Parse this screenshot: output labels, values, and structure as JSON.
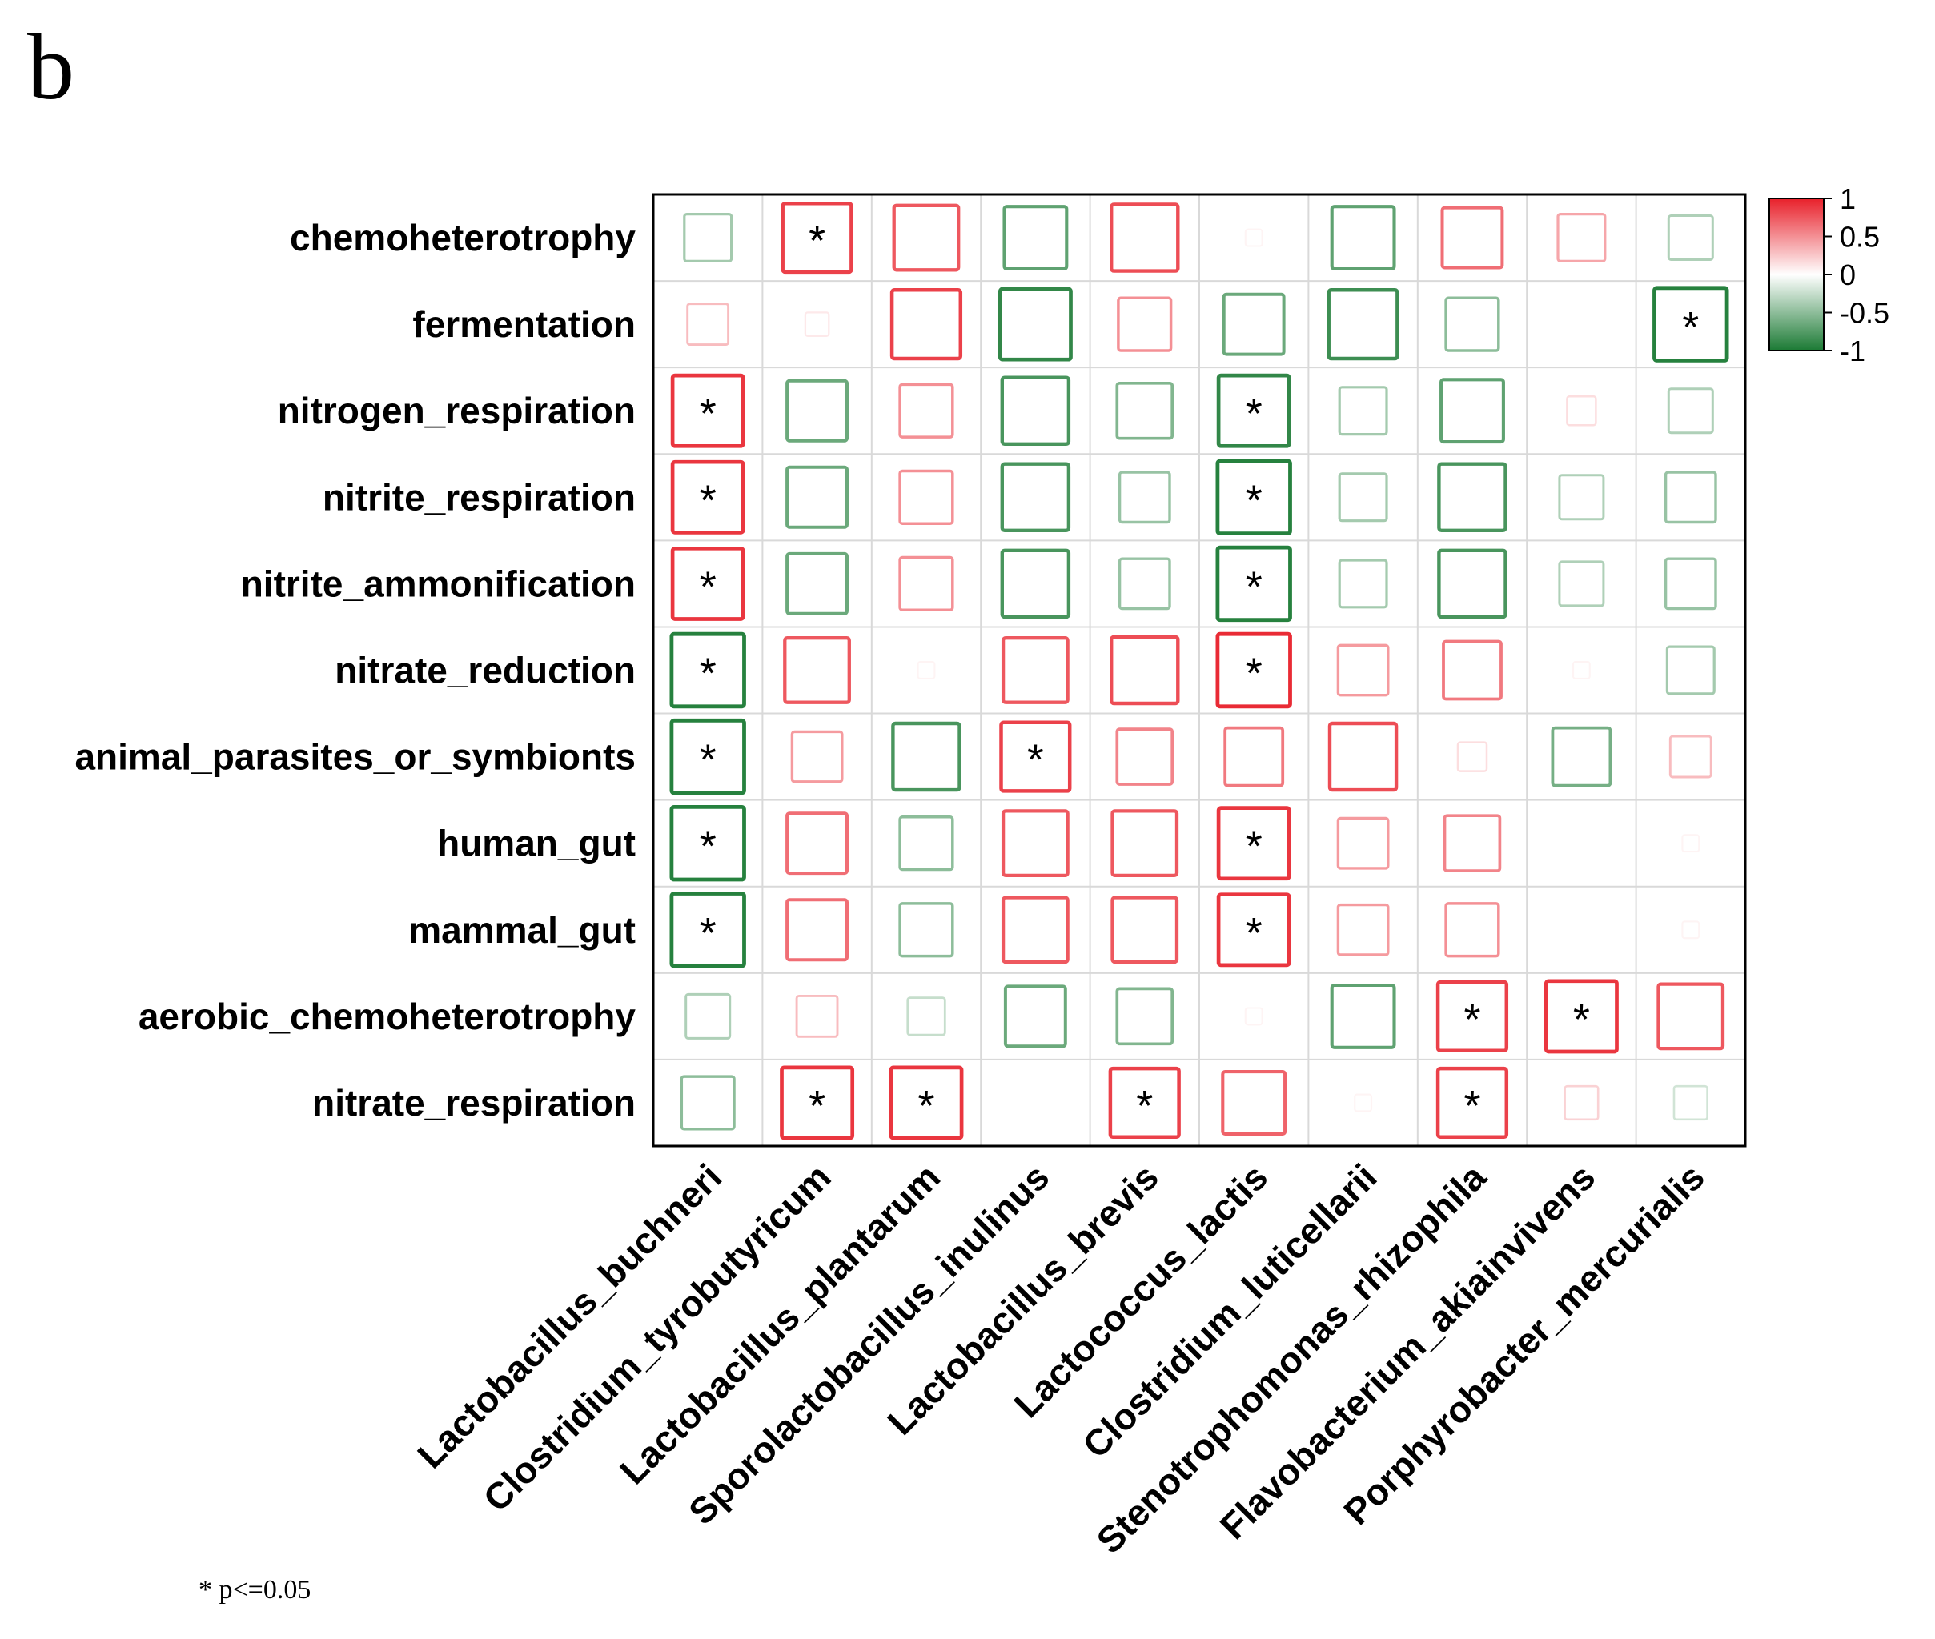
{
  "figure": {
    "panel_label": "b",
    "footnote": "* p<=0.05"
  },
  "colors": {
    "positive": "#e8202a",
    "negative": "#1b7a34",
    "mid": "#ffffff",
    "grid": "#d9d9d9",
    "frame": "#000000"
  },
  "chart_data": {
    "type": "heatmap",
    "title": "",
    "rows": [
      "chemoheterotrophy",
      "fermentation",
      "nitrogen_respiration",
      "nitrite_respiration",
      "nitrite_ammonification",
      "nitrate_reduction",
      "animal_parasites_or_symbionts",
      "human_gut",
      "mammal_gut",
      "aerobic_chemoheterotrophy",
      "nitrate_respiration"
    ],
    "columns": [
      "Lactobacillus_buchneri",
      "Clostridium_tyrobutyricum",
      "Lactobacillus_plantarum",
      "Sporolactobacillus_inulinus",
      "Lactobacillus_brevis",
      "Lactococcus_lactis",
      "Clostridium_luticellarii",
      "Stenotrophomonas_rhizophila",
      "Flavobacterium_akiainvivens",
      "Porphyrobacter_mercurialis"
    ],
    "values": [
      [
        -0.4,
        0.85,
        0.75,
        -0.7,
        0.8,
        0.05,
        -0.7,
        0.65,
        0.4,
        -0.35
      ],
      [
        0.3,
        0.1,
        0.85,
        -0.9,
        0.5,
        -0.65,
        -0.85,
        -0.5,
        0.0,
        -0.95
      ],
      [
        0.9,
        -0.65,
        0.5,
        -0.8,
        -0.55,
        -0.9,
        -0.4,
        -0.7,
        0.15,
        -0.35
      ],
      [
        0.9,
        -0.65,
        0.5,
        -0.8,
        -0.45,
        -0.95,
        -0.4,
        -0.8,
        -0.35,
        -0.45
      ],
      [
        0.9,
        -0.65,
        0.5,
        -0.8,
        -0.45,
        -0.95,
        -0.4,
        -0.8,
        -0.35,
        -0.45
      ],
      [
        -0.95,
        0.75,
        0.05,
        0.75,
        0.8,
        0.95,
        0.45,
        0.6,
        0.05,
        -0.4
      ],
      [
        -0.95,
        0.45,
        -0.8,
        0.85,
        0.55,
        0.6,
        0.8,
        0.15,
        -0.6,
        0.3
      ],
      [
        -0.95,
        0.65,
        -0.5,
        0.75,
        0.75,
        0.9,
        0.45,
        0.55,
        0.0,
        0.05
      ],
      [
        -0.95,
        0.65,
        -0.5,
        0.75,
        0.75,
        0.9,
        0.45,
        0.5,
        0.0,
        0.05
      ],
      [
        -0.35,
        0.3,
        -0.25,
        -0.65,
        -0.55,
        0.05,
        -0.7,
        0.85,
        0.9,
        0.75
      ],
      [
        -0.5,
        0.9,
        0.9,
        0.0,
        0.85,
        0.7,
        0.05,
        0.85,
        0.2,
        -0.2
      ]
    ],
    "significant": [
      [
        false,
        true,
        false,
        false,
        false,
        false,
        false,
        false,
        false,
        false
      ],
      [
        false,
        false,
        false,
        false,
        false,
        false,
        false,
        false,
        false,
        true
      ],
      [
        true,
        false,
        false,
        false,
        false,
        true,
        false,
        false,
        false,
        false
      ],
      [
        true,
        false,
        false,
        false,
        false,
        true,
        false,
        false,
        false,
        false
      ],
      [
        true,
        false,
        false,
        false,
        false,
        true,
        false,
        false,
        false,
        false
      ],
      [
        true,
        false,
        false,
        false,
        false,
        true,
        false,
        false,
        false,
        false
      ],
      [
        true,
        false,
        false,
        true,
        false,
        false,
        false,
        false,
        false,
        false
      ],
      [
        true,
        false,
        false,
        false,
        false,
        true,
        false,
        false,
        false,
        false
      ],
      [
        true,
        false,
        false,
        false,
        false,
        true,
        false,
        false,
        false,
        false
      ],
      [
        false,
        false,
        false,
        false,
        false,
        false,
        false,
        true,
        true,
        false
      ],
      [
        false,
        true,
        true,
        false,
        true,
        false,
        false,
        true,
        false,
        false
      ]
    ],
    "significance_marker": "*",
    "value_range": [
      -1,
      1
    ],
    "legend": {
      "placement": "top-right",
      "ticks": [
        1,
        0.5,
        0,
        -0.5,
        -1
      ],
      "tick_labels": [
        "1",
        "0.5",
        "0",
        "-0.5",
        "-1"
      ]
    }
  }
}
